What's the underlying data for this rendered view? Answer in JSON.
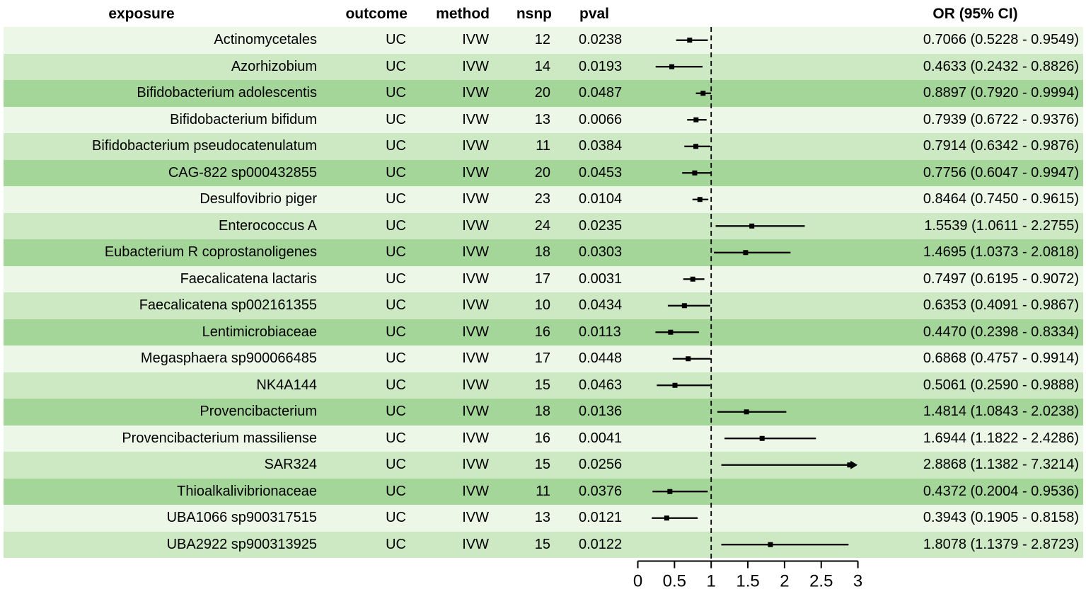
{
  "header": {
    "exposure": "exposure",
    "outcome": "outcome",
    "method": "method",
    "nsnp": "nsnp",
    "pval": "pval",
    "or_ci": "OR (95% CI)"
  },
  "colors": {
    "row_light": "#ECF7E8",
    "row_medium": "#CDE9C3",
    "row_dark": "#A5D699",
    "line": "#000000",
    "text": "#000000"
  },
  "axis": {
    "tick_labels": [
      "0",
      "0.5",
      "1",
      "1.5",
      "2",
      "2.5",
      "3"
    ]
  },
  "rows": [
    {
      "exposure": "Actinomycetales",
      "outcome": "UC",
      "method": "IVW",
      "nsnp": "12",
      "pval": "0.0238",
      "or_ci": "0.7066 (0.5228 - 0.9549)",
      "or": 0.7066,
      "lo": 0.5228,
      "hi": 0.9549
    },
    {
      "exposure": "Azorhizobium",
      "outcome": "UC",
      "method": "IVW",
      "nsnp": "14",
      "pval": "0.0193",
      "or_ci": "0.4633 (0.2432 - 0.8826)",
      "or": 0.4633,
      "lo": 0.2432,
      "hi": 0.8826
    },
    {
      "exposure": "Bifidobacterium adolescentis",
      "outcome": "UC",
      "method": "IVW",
      "nsnp": "20",
      "pval": "0.0487",
      "or_ci": "0.8897 (0.7920 - 0.9994)",
      "or": 0.8897,
      "lo": 0.792,
      "hi": 0.9994
    },
    {
      "exposure": "Bifidobacterium bifidum",
      "outcome": "UC",
      "method": "IVW",
      "nsnp": "13",
      "pval": "0.0066",
      "or_ci": "0.7939 (0.6722 - 0.9376)",
      "or": 0.7939,
      "lo": 0.6722,
      "hi": 0.9376
    },
    {
      "exposure": "Bifidobacterium pseudocatenulatum",
      "outcome": "UC",
      "method": "IVW",
      "nsnp": "11",
      "pval": "0.0384",
      "or_ci": "0.7914 (0.6342 - 0.9876)",
      "or": 0.7914,
      "lo": 0.6342,
      "hi": 0.9876
    },
    {
      "exposure": "CAG-822 sp000432855",
      "outcome": "UC",
      "method": "IVW",
      "nsnp": "20",
      "pval": "0.0453",
      "or_ci": "0.7756 (0.6047 - 0.9947)",
      "or": 0.7756,
      "lo": 0.6047,
      "hi": 0.9947
    },
    {
      "exposure": "Desulfovibrio piger",
      "outcome": "UC",
      "method": "IVW",
      "nsnp": "23",
      "pval": "0.0104",
      "or_ci": "0.8464 (0.7450 - 0.9615)",
      "or": 0.8464,
      "lo": 0.745,
      "hi": 0.9615
    },
    {
      "exposure": "Enterococcus A",
      "outcome": "UC",
      "method": "IVW",
      "nsnp": "24",
      "pval": "0.0235",
      "or_ci": "1.5539 (1.0611 - 2.2755)",
      "or": 1.5539,
      "lo": 1.0611,
      "hi": 2.2755
    },
    {
      "exposure": "Eubacterium R coprostanoligenes",
      "outcome": "UC",
      "method": "IVW",
      "nsnp": "18",
      "pval": "0.0303",
      "or_ci": "1.4695 (1.0373 - 2.0818)",
      "or": 1.4695,
      "lo": 1.0373,
      "hi": 2.0818
    },
    {
      "exposure": "Faecalicatena lactaris",
      "outcome": "UC",
      "method": "IVW",
      "nsnp": "17",
      "pval": "0.0031",
      "or_ci": "0.7497 (0.6195 - 0.9072)",
      "or": 0.7497,
      "lo": 0.6195,
      "hi": 0.9072
    },
    {
      "exposure": "Faecalicatena sp002161355",
      "outcome": "UC",
      "method": "IVW",
      "nsnp": "10",
      "pval": "0.0434",
      "or_ci": "0.6353 (0.4091 - 0.9867)",
      "or": 0.6353,
      "lo": 0.4091,
      "hi": 0.9867
    },
    {
      "exposure": "Lentimicrobiaceae",
      "outcome": "UC",
      "method": "IVW",
      "nsnp": "16",
      "pval": "0.0113",
      "or_ci": "0.4470 (0.2398 - 0.8334)",
      "or": 0.447,
      "lo": 0.2398,
      "hi": 0.8334
    },
    {
      "exposure": "Megasphaera sp900066485",
      "outcome": "UC",
      "method": "IVW",
      "nsnp": "17",
      "pval": "0.0448",
      "or_ci": "0.6868 (0.4757 - 0.9914)",
      "or": 0.6868,
      "lo": 0.4757,
      "hi": 0.9914
    },
    {
      "exposure": "NK4A144",
      "outcome": "UC",
      "method": "IVW",
      "nsnp": "15",
      "pval": "0.0463",
      "or_ci": "0.5061 (0.2590 - 0.9888)",
      "or": 0.5061,
      "lo": 0.259,
      "hi": 0.9888
    },
    {
      "exposure": "Provencibacterium",
      "outcome": "UC",
      "method": "IVW",
      "nsnp": "18",
      "pval": "0.0136",
      "or_ci": "1.4814 (1.0843 - 2.0238)",
      "or": 1.4814,
      "lo": 1.0843,
      "hi": 2.0238
    },
    {
      "exposure": "Provencibacterium massiliense",
      "outcome": "UC",
      "method": "IVW",
      "nsnp": "16",
      "pval": "0.0041",
      "or_ci": "1.6944 (1.1822 - 2.4286)",
      "or": 1.6944,
      "lo": 1.1822,
      "hi": 2.4286
    },
    {
      "exposure": "SAR324",
      "outcome": "UC",
      "method": "IVW",
      "nsnp": "15",
      "pval": "0.0256",
      "or_ci": "2.8868 (1.1382 - 7.3214)",
      "or": 2.8868,
      "lo": 1.1382,
      "hi": 7.3214
    },
    {
      "exposure": "Thioalkalivibrionaceae",
      "outcome": "UC",
      "method": "IVW",
      "nsnp": "11",
      "pval": "0.0376",
      "or_ci": "0.4372 (0.2004 - 0.9536)",
      "or": 0.4372,
      "lo": 0.2004,
      "hi": 0.9536
    },
    {
      "exposure": "UBA1066 sp900317515",
      "outcome": "UC",
      "method": "IVW",
      "nsnp": "13",
      "pval": "0.0121",
      "or_ci": "0.3943 (0.1905 - 0.8158)",
      "or": 0.3943,
      "lo": 0.1905,
      "hi": 0.8158
    },
    {
      "exposure": "UBA2922 sp900313925",
      "outcome": "UC",
      "method": "IVW",
      "nsnp": "15",
      "pval": "0.0122",
      "or_ci": "1.8078 (1.1379 - 2.8723)",
      "or": 1.8078,
      "lo": 1.1379,
      "hi": 2.8723
    }
  ],
  "chart_data": {
    "type": "forest",
    "title": "",
    "xlabel": "",
    "xlim": [
      0,
      3
    ],
    "x_ticks": [
      0,
      0.5,
      1,
      1.5,
      2,
      2.5,
      3
    ],
    "reference_line_x": 1,
    "reference_line_style": "dashed",
    "grid": false,
    "columns": [
      "exposure",
      "outcome",
      "method",
      "nsnp",
      "pval",
      "OR (95% CI)"
    ],
    "series": [
      {
        "name": "Actinomycetales",
        "or": 0.7066,
        "ci_low": 0.5228,
        "ci_high": 0.9549,
        "nsnp": 12,
        "pval": 0.0238
      },
      {
        "name": "Azorhizobium",
        "or": 0.4633,
        "ci_low": 0.2432,
        "ci_high": 0.8826,
        "nsnp": 14,
        "pval": 0.0193
      },
      {
        "name": "Bifidobacterium adolescentis",
        "or": 0.8897,
        "ci_low": 0.792,
        "ci_high": 0.9994,
        "nsnp": 20,
        "pval": 0.0487
      },
      {
        "name": "Bifidobacterium bifidum",
        "or": 0.7939,
        "ci_low": 0.6722,
        "ci_high": 0.9376,
        "nsnp": 13,
        "pval": 0.0066
      },
      {
        "name": "Bifidobacterium pseudocatenulatum",
        "or": 0.7914,
        "ci_low": 0.6342,
        "ci_high": 0.9876,
        "nsnp": 11,
        "pval": 0.0384
      },
      {
        "name": "CAG-822 sp000432855",
        "or": 0.7756,
        "ci_low": 0.6047,
        "ci_high": 0.9947,
        "nsnp": 20,
        "pval": 0.0453
      },
      {
        "name": "Desulfovibrio piger",
        "or": 0.8464,
        "ci_low": 0.745,
        "ci_high": 0.9615,
        "nsnp": 23,
        "pval": 0.0104
      },
      {
        "name": "Enterococcus A",
        "or": 1.5539,
        "ci_low": 1.0611,
        "ci_high": 2.2755,
        "nsnp": 24,
        "pval": 0.0235
      },
      {
        "name": "Eubacterium R coprostanoligenes",
        "or": 1.4695,
        "ci_low": 1.0373,
        "ci_high": 2.0818,
        "nsnp": 18,
        "pval": 0.0303
      },
      {
        "name": "Faecalicatena lactaris",
        "or": 0.7497,
        "ci_low": 0.6195,
        "ci_high": 0.9072,
        "nsnp": 17,
        "pval": 0.0031
      },
      {
        "name": "Faecalicatena sp002161355",
        "or": 0.6353,
        "ci_low": 0.4091,
        "ci_high": 0.9867,
        "nsnp": 10,
        "pval": 0.0434
      },
      {
        "name": "Lentimicrobiaceae",
        "or": 0.447,
        "ci_low": 0.2398,
        "ci_high": 0.8334,
        "nsnp": 16,
        "pval": 0.0113
      },
      {
        "name": "Megasphaera sp900066485",
        "or": 0.6868,
        "ci_low": 0.4757,
        "ci_high": 0.9914,
        "nsnp": 17,
        "pval": 0.0448
      },
      {
        "name": "NK4A144",
        "or": 0.5061,
        "ci_low": 0.259,
        "ci_high": 0.9888,
        "nsnp": 15,
        "pval": 0.0463
      },
      {
        "name": "Provencibacterium",
        "or": 1.4814,
        "ci_low": 1.0843,
        "ci_high": 2.0238,
        "nsnp": 18,
        "pval": 0.0136
      },
      {
        "name": "Provencibacterium massiliense",
        "or": 1.6944,
        "ci_low": 1.1822,
        "ci_high": 2.4286,
        "nsnp": 16,
        "pval": 0.0041
      },
      {
        "name": "SAR324",
        "or": 2.8868,
        "ci_low": 1.1382,
        "ci_high": 7.3214,
        "nsnp": 15,
        "pval": 0.0256,
        "ci_clipped_right": true
      },
      {
        "name": "Thioalkalivibrionaceae",
        "or": 0.4372,
        "ci_low": 0.2004,
        "ci_high": 0.9536,
        "nsnp": 11,
        "pval": 0.0376
      },
      {
        "name": "UBA1066 sp900317515",
        "or": 0.3943,
        "ci_low": 0.1905,
        "ci_high": 0.8158,
        "nsnp": 13,
        "pval": 0.0121
      },
      {
        "name": "UBA2922 sp900313925",
        "or": 1.8078,
        "ci_low": 1.1379,
        "ci_high": 2.8723,
        "nsnp": 15,
        "pval": 0.0122
      }
    ]
  }
}
